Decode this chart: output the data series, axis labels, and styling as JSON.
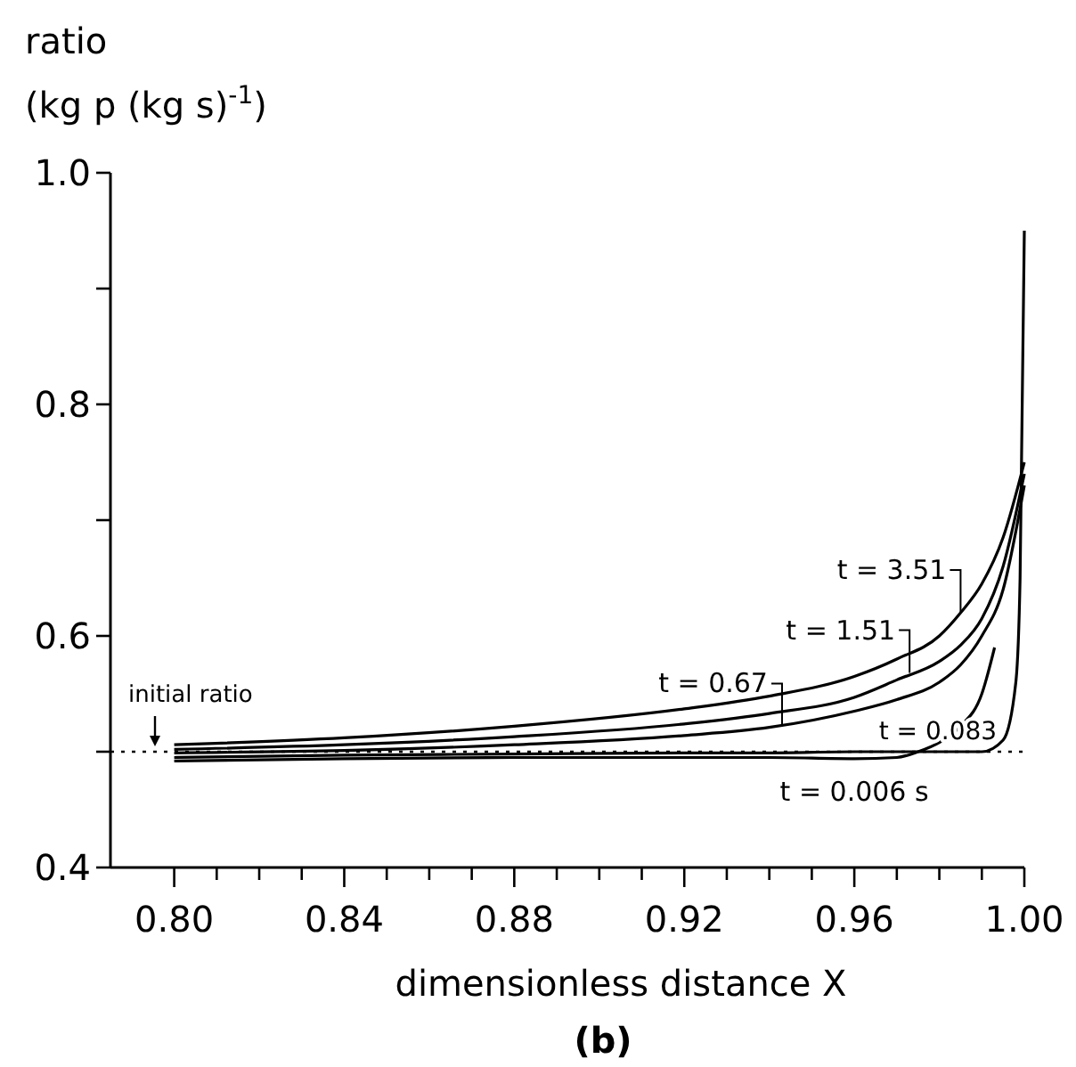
{
  "chart_data": {
    "type": "line",
    "ylabel": "ratio\n(kg p (kg s)$^{-1}$)",
    "xlabel": "dimensionless distance X",
    "xlim": [
      0.785,
      1.0
    ],
    "ylim": [
      0.4,
      1.0
    ],
    "xticks": [
      {
        "value": 0.8,
        "label": "0.80"
      },
      {
        "value": 0.81,
        "label": null
      },
      {
        "value": 0.82,
        "label": null
      },
      {
        "value": 0.83,
        "label": null
      },
      {
        "value": 0.84,
        "label": "0.84"
      },
      {
        "value": 0.85,
        "label": null
      },
      {
        "value": 0.86,
        "label": null
      },
      {
        "value": 0.87,
        "label": null
      },
      {
        "value": 0.88,
        "label": "0.88"
      },
      {
        "value": 0.89,
        "label": null
      },
      {
        "value": 0.9,
        "label": null
      },
      {
        "value": 0.91,
        "label": null
      },
      {
        "value": 0.92,
        "label": "0.92"
      },
      {
        "value": 0.93,
        "label": null
      },
      {
        "value": 0.94,
        "label": null
      },
      {
        "value": 0.95,
        "label": null
      },
      {
        "value": 0.96,
        "label": "0.96"
      },
      {
        "value": 0.97,
        "label": null
      },
      {
        "value": 0.98,
        "label": null
      },
      {
        "value": 0.99,
        "label": null
      },
      {
        "value": 1.0,
        "label": "1.00"
      }
    ],
    "yticks": [
      0.4,
      {
        "value": 0.5,
        "label": null
      },
      0.6,
      {
        "value": 0.7,
        "label": null
      },
      0.8,
      {
        "value": 0.9,
        "label": null
      },
      {
        "value": 1.0,
        "label": "1.0"
      }
    ],
    "grid": false,
    "marker": "none",
    "line_style": "solid",
    "series": [
      {
        "color": "#000000",
        "x": [
          0.8,
          0.84,
          0.88,
          0.92,
          0.94,
          0.96,
          0.97,
          0.98,
          0.985,
          0.99,
          0.995,
          1.0
        ],
        "values": [
          0.506,
          0.512,
          0.522,
          0.537,
          0.548,
          0.565,
          0.58,
          0.6,
          0.62,
          0.645,
          0.685,
          0.75
        ]
      },
      {
        "color": "#000000",
        "x": [
          0.8,
          0.84,
          0.88,
          0.92,
          0.94,
          0.96,
          0.97,
          0.98,
          0.985,
          0.99,
          0.995,
          1.0
        ],
        "values": [
          0.502,
          0.506,
          0.513,
          0.524,
          0.533,
          0.547,
          0.562,
          0.578,
          0.592,
          0.615,
          0.66,
          0.74
        ]
      },
      {
        "color": "#000000",
        "x": [
          0.8,
          0.84,
          0.88,
          0.92,
          0.94,
          0.96,
          0.97,
          0.98,
          0.985,
          0.99,
          0.995,
          1.0
        ],
        "values": [
          0.499,
          0.501,
          0.506,
          0.514,
          0.521,
          0.535,
          0.545,
          0.56,
          0.575,
          0.6,
          0.64,
          0.73
        ]
      },
      {
        "color": "#000000",
        "x": [
          0.8,
          0.84,
          0.88,
          0.92,
          0.94,
          0.96,
          0.97,
          0.975,
          0.98,
          0.985,
          0.99,
          0.993
        ],
        "values": [
          0.492,
          0.494,
          0.495,
          0.495,
          0.495,
          0.494,
          0.495,
          0.5,
          0.508,
          0.522,
          0.55,
          0.59
        ]
      },
      {
        "color": "#000000",
        "x": [
          0.8,
          0.84,
          0.88,
          0.92,
          0.94,
          0.96,
          0.97,
          0.98,
          0.99,
          0.995,
          0.998,
          0.999,
          1.0
        ],
        "values": [
          0.495,
          0.497,
          0.498,
          0.499,
          0.499,
          0.5,
          0.5,
          0.5,
          0.5,
          0.51,
          0.56,
          0.65,
          0.95
        ]
      }
    ],
    "ref_lines": [
      {
        "axis": "y",
        "value": 0.5,
        "label": "initial ratio",
        "line_style": "dotted",
        "color": "#000000"
      }
    ],
    "annotations": [
      {
        "text": "t = 3.51",
        "x": 0.985,
        "y": 0.62
      },
      {
        "text": "t = 1.51",
        "x": 0.973,
        "y": 0.568
      },
      {
        "text": "t = 0.67",
        "x": 0.943,
        "y": 0.522
      },
      {
        "text": "t = 0.083",
        "x": 0.975,
        "y": 0.5
      },
      {
        "text": "t = 0.006  s",
        "x": 0.96,
        "y": 0.495
      },
      "(b)"
    ]
  }
}
